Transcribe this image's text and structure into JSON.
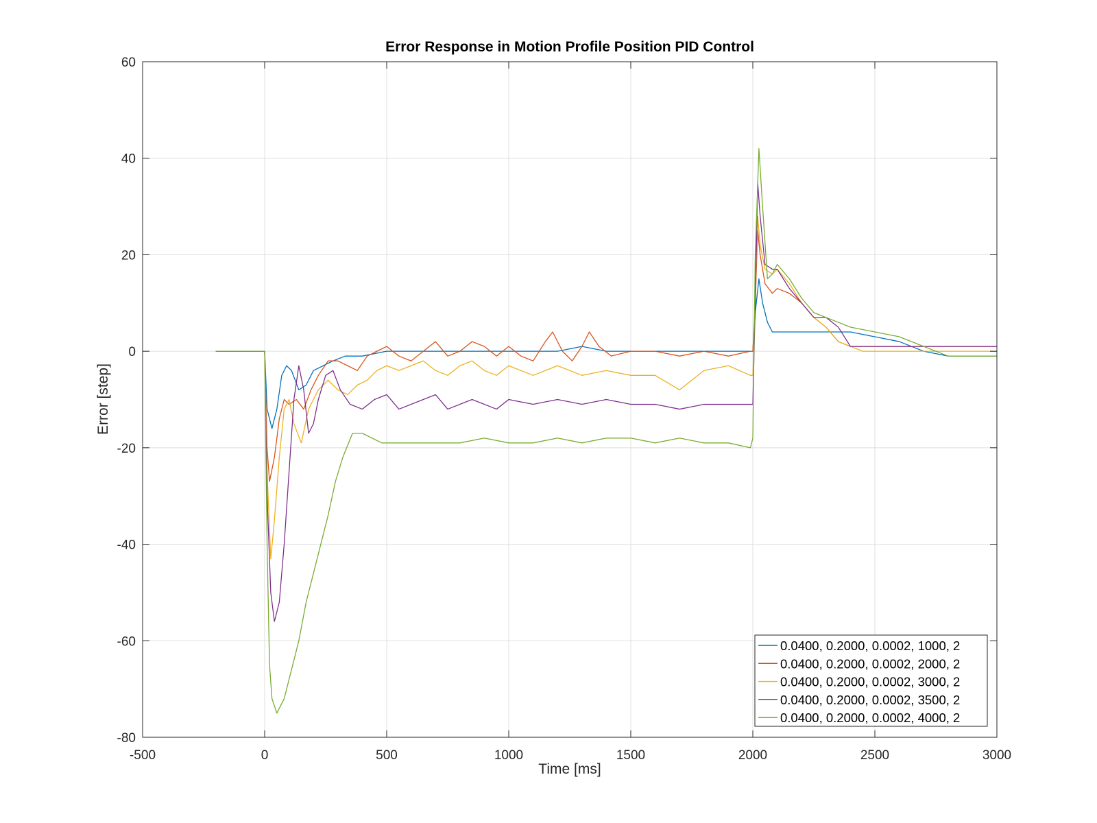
{
  "chart_data": {
    "type": "line",
    "title": "Error Response in Motion Profile Position PID Control",
    "xlabel": "Time [ms]",
    "ylabel": "Error [step]",
    "xlim": [
      -500,
      3000
    ],
    "ylim": [
      -80,
      60
    ],
    "xticks": [
      -500,
      0,
      500,
      1000,
      1500,
      2000,
      2500,
      3000
    ],
    "yticks": [
      -80,
      -60,
      -40,
      -20,
      0,
      20,
      40,
      60
    ],
    "xtick_labels": [
      "-500",
      "0",
      "500",
      "1000",
      "1500",
      "2000",
      "2500",
      "3000"
    ],
    "ytick_labels": [
      "-80",
      "-60",
      "-40",
      "-20",
      "0",
      "20",
      "40",
      "60"
    ],
    "grid": true,
    "legend_position": "bottom-right",
    "series": [
      {
        "name": "0.0400, 0.2000, 0.0002, 1000, 2",
        "color": "#0072BD",
        "points": [
          [
            -200,
            0
          ],
          [
            0,
            0
          ],
          [
            10,
            -12
          ],
          [
            30,
            -16
          ],
          [
            50,
            -12
          ],
          [
            70,
            -5
          ],
          [
            90,
            -3
          ],
          [
            110,
            -4
          ],
          [
            140,
            -8
          ],
          [
            170,
            -7
          ],
          [
            200,
            -4
          ],
          [
            240,
            -3
          ],
          [
            280,
            -2
          ],
          [
            330,
            -1
          ],
          [
            400,
            -1
          ],
          [
            500,
            0
          ],
          [
            600,
            0
          ],
          [
            700,
            0
          ],
          [
            800,
            0
          ],
          [
            900,
            0
          ],
          [
            1000,
            0
          ],
          [
            1100,
            0
          ],
          [
            1200,
            0
          ],
          [
            1300,
            1
          ],
          [
            1400,
            0
          ],
          [
            1500,
            0
          ],
          [
            1600,
            0
          ],
          [
            1700,
            0
          ],
          [
            1800,
            0
          ],
          [
            1900,
            0
          ],
          [
            1990,
            0
          ],
          [
            2000,
            0
          ],
          [
            2010,
            8
          ],
          [
            2025,
            15
          ],
          [
            2040,
            10
          ],
          [
            2060,
            6
          ],
          [
            2080,
            4
          ],
          [
            2150,
            4
          ],
          [
            2200,
            4
          ],
          [
            2300,
            4
          ],
          [
            2400,
            4
          ],
          [
            2500,
            3
          ],
          [
            2600,
            2
          ],
          [
            2700,
            0
          ],
          [
            2800,
            -1
          ],
          [
            2900,
            -1
          ],
          [
            3000,
            -1
          ]
        ]
      },
      {
        "name": "0.0400, 0.2000, 0.0002, 2000, 2",
        "color": "#D95319",
        "points": [
          [
            -200,
            0
          ],
          [
            0,
            0
          ],
          [
            10,
            -20
          ],
          [
            20,
            -27
          ],
          [
            40,
            -22
          ],
          [
            60,
            -14
          ],
          [
            80,
            -10
          ],
          [
            100,
            -11
          ],
          [
            130,
            -10
          ],
          [
            160,
            -12
          ],
          [
            190,
            -8
          ],
          [
            220,
            -5
          ],
          [
            260,
            -2
          ],
          [
            300,
            -2
          ],
          [
            340,
            -3
          ],
          [
            380,
            -4
          ],
          [
            420,
            -1
          ],
          [
            460,
            0
          ],
          [
            500,
            1
          ],
          [
            550,
            -1
          ],
          [
            600,
            -2
          ],
          [
            650,
            0
          ],
          [
            700,
            2
          ],
          [
            750,
            -1
          ],
          [
            800,
            0
          ],
          [
            850,
            2
          ],
          [
            900,
            1
          ],
          [
            950,
            -1
          ],
          [
            1000,
            1
          ],
          [
            1050,
            -1
          ],
          [
            1100,
            -2
          ],
          [
            1150,
            2
          ],
          [
            1180,
            4
          ],
          [
            1220,
            0
          ],
          [
            1260,
            -2
          ],
          [
            1300,
            1
          ],
          [
            1330,
            4
          ],
          [
            1370,
            1
          ],
          [
            1420,
            -1
          ],
          [
            1500,
            0
          ],
          [
            1600,
            0
          ],
          [
            1700,
            -1
          ],
          [
            1800,
            0
          ],
          [
            1900,
            -1
          ],
          [
            1990,
            0
          ],
          [
            2000,
            0
          ],
          [
            2010,
            10
          ],
          [
            2020,
            25
          ],
          [
            2030,
            20
          ],
          [
            2050,
            14
          ],
          [
            2080,
            12
          ],
          [
            2100,
            13
          ],
          [
            2150,
            12
          ],
          [
            2200,
            10
          ],
          [
            2250,
            7
          ],
          [
            2300,
            5
          ],
          [
            2350,
            2
          ],
          [
            2400,
            1
          ],
          [
            2500,
            1
          ],
          [
            2600,
            1
          ],
          [
            2700,
            1
          ],
          [
            2800,
            1
          ],
          [
            2900,
            1
          ],
          [
            3000,
            1
          ]
        ]
      },
      {
        "name": "0.0400, 0.2000, 0.0002, 3000, 2",
        "color": "#EDB120",
        "points": [
          [
            -200,
            0
          ],
          [
            0,
            0
          ],
          [
            10,
            -25
          ],
          [
            25,
            -43
          ],
          [
            40,
            -35
          ],
          [
            60,
            -22
          ],
          [
            80,
            -12
          ],
          [
            100,
            -10
          ],
          [
            120,
            -15
          ],
          [
            150,
            -19
          ],
          [
            180,
            -12
          ],
          [
            220,
            -8
          ],
          [
            260,
            -6
          ],
          [
            300,
            -8
          ],
          [
            340,
            -9
          ],
          [
            380,
            -7
          ],
          [
            420,
            -6
          ],
          [
            460,
            -4
          ],
          [
            500,
            -3
          ],
          [
            550,
            -4
          ],
          [
            600,
            -3
          ],
          [
            650,
            -2
          ],
          [
            700,
            -4
          ],
          [
            750,
            -5
          ],
          [
            800,
            -3
          ],
          [
            850,
            -2
          ],
          [
            900,
            -4
          ],
          [
            950,
            -5
          ],
          [
            1000,
            -3
          ],
          [
            1100,
            -5
          ],
          [
            1200,
            -3
          ],
          [
            1300,
            -5
          ],
          [
            1400,
            -4
          ],
          [
            1500,
            -5
          ],
          [
            1600,
            -5
          ],
          [
            1700,
            -8
          ],
          [
            1800,
            -4
          ],
          [
            1900,
            -3
          ],
          [
            1990,
            -5
          ],
          [
            2000,
            -5
          ],
          [
            2010,
            10
          ],
          [
            2020,
            28
          ],
          [
            2030,
            22
          ],
          [
            2050,
            17
          ],
          [
            2080,
            16
          ],
          [
            2100,
            17
          ],
          [
            2150,
            14
          ],
          [
            2200,
            10
          ],
          [
            2250,
            7
          ],
          [
            2300,
            5
          ],
          [
            2350,
            2
          ],
          [
            2400,
            1
          ],
          [
            2450,
            0
          ],
          [
            2500,
            0
          ],
          [
            2600,
            0
          ],
          [
            2700,
            0
          ],
          [
            2800,
            0
          ],
          [
            2900,
            0
          ],
          [
            3000,
            0
          ]
        ]
      },
      {
        "name": "0.0400, 0.2000, 0.0002, 3500, 2",
        "color": "#7E2F8E",
        "points": [
          [
            -200,
            0
          ],
          [
            0,
            0
          ],
          [
            10,
            -30
          ],
          [
            25,
            -50
          ],
          [
            40,
            -56
          ],
          [
            60,
            -52
          ],
          [
            80,
            -40
          ],
          [
            100,
            -25
          ],
          [
            120,
            -10
          ],
          [
            140,
            -3
          ],
          [
            160,
            -8
          ],
          [
            180,
            -17
          ],
          [
            200,
            -15
          ],
          [
            220,
            -10
          ],
          [
            250,
            -5
          ],
          [
            280,
            -4
          ],
          [
            310,
            -8
          ],
          [
            350,
            -11
          ],
          [
            400,
            -12
          ],
          [
            450,
            -10
          ],
          [
            500,
            -9
          ],
          [
            550,
            -12
          ],
          [
            600,
            -11
          ],
          [
            650,
            -10
          ],
          [
            700,
            -9
          ],
          [
            750,
            -12
          ],
          [
            800,
            -11
          ],
          [
            850,
            -10
          ],
          [
            900,
            -11
          ],
          [
            950,
            -12
          ],
          [
            1000,
            -10
          ],
          [
            1100,
            -11
          ],
          [
            1200,
            -10
          ],
          [
            1300,
            -11
          ],
          [
            1400,
            -10
          ],
          [
            1500,
            -11
          ],
          [
            1600,
            -11
          ],
          [
            1700,
            -12
          ],
          [
            1800,
            -11
          ],
          [
            1900,
            -11
          ],
          [
            1990,
            -11
          ],
          [
            2000,
            -11
          ],
          [
            2010,
            10
          ],
          [
            2020,
            35
          ],
          [
            2030,
            28
          ],
          [
            2050,
            18
          ],
          [
            2080,
            17
          ],
          [
            2100,
            17
          ],
          [
            2150,
            13
          ],
          [
            2200,
            10
          ],
          [
            2250,
            7
          ],
          [
            2300,
            7
          ],
          [
            2350,
            5
          ],
          [
            2400,
            1
          ],
          [
            2500,
            1
          ],
          [
            2600,
            1
          ],
          [
            2700,
            1
          ],
          [
            2800,
            1
          ],
          [
            2900,
            1
          ],
          [
            3000,
            1
          ]
        ]
      },
      {
        "name": "0.0400, 0.2000, 0.0002, 4000, 2",
        "color": "#77AC30",
        "points": [
          [
            -200,
            0
          ],
          [
            0,
            0
          ],
          [
            10,
            -40
          ],
          [
            20,
            -65
          ],
          [
            30,
            -72
          ],
          [
            50,
            -75
          ],
          [
            80,
            -72
          ],
          [
            110,
            -66
          ],
          [
            140,
            -60
          ],
          [
            170,
            -52
          ],
          [
            200,
            -46
          ],
          [
            230,
            -40
          ],
          [
            260,
            -34
          ],
          [
            290,
            -27
          ],
          [
            320,
            -22
          ],
          [
            360,
            -17
          ],
          [
            400,
            -17
          ],
          [
            440,
            -18
          ],
          [
            480,
            -19
          ],
          [
            600,
            -19
          ],
          [
            700,
            -19
          ],
          [
            800,
            -19
          ],
          [
            900,
            -18
          ],
          [
            1000,
            -19
          ],
          [
            1100,
            -19
          ],
          [
            1200,
            -18
          ],
          [
            1300,
            -19
          ],
          [
            1400,
            -18
          ],
          [
            1500,
            -18
          ],
          [
            1600,
            -19
          ],
          [
            1700,
            -18
          ],
          [
            1800,
            -19
          ],
          [
            1900,
            -19
          ],
          [
            1990,
            -20
          ],
          [
            2000,
            -18
          ],
          [
            2010,
            20
          ],
          [
            2025,
            42
          ],
          [
            2040,
            30
          ],
          [
            2060,
            15
          ],
          [
            2080,
            16
          ],
          [
            2100,
            18
          ],
          [
            2150,
            15
          ],
          [
            2200,
            11
          ],
          [
            2250,
            8
          ],
          [
            2300,
            7
          ],
          [
            2350,
            6
          ],
          [
            2400,
            5
          ],
          [
            2500,
            4
          ],
          [
            2600,
            3
          ],
          [
            2700,
            1
          ],
          [
            2800,
            -1
          ],
          [
            2900,
            -1
          ],
          [
            3000,
            -1
          ]
        ]
      }
    ]
  }
}
